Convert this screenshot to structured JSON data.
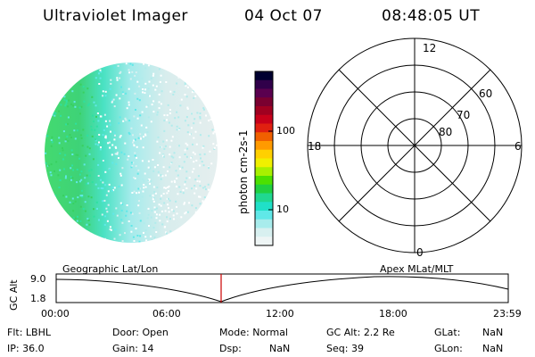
{
  "header": {
    "title": "Ultraviolet Imager",
    "date": "04 Oct 07",
    "time": "08:48:05 UT"
  },
  "colorbar": {
    "label": "photon cm-2s-1",
    "ticks": [
      "100",
      "10"
    ],
    "colors": [
      "#000030",
      "#30004a",
      "#5a004f",
      "#7a0030",
      "#a00020",
      "#c8001a",
      "#e02010",
      "#f06000",
      "#ff9a00",
      "#ffd000",
      "#f0f000",
      "#a8f000",
      "#4ce000",
      "#20d040",
      "#20d890",
      "#20e0c8",
      "#60e8e8",
      "#a8ecec",
      "#d8f0f0",
      "#eef5f5"
    ]
  },
  "polar_plot": {
    "mlt_labels": {
      "top": "12",
      "left": "18",
      "right": "6",
      "bottom": "0"
    },
    "lat_labels": [
      "60",
      "70",
      "80"
    ]
  },
  "timeline": {
    "ylabel": "GC Alt",
    "y_ticks": [
      "9.0",
      "1.8"
    ],
    "left_label": "Geographic Lat/Lon",
    "right_label": "Apex MLat/MLT",
    "x_ticks": [
      "00:00",
      "06:00",
      "12:00",
      "18:00",
      "23:59"
    ],
    "marker_color": "#cc0000"
  },
  "info": {
    "row1": [
      {
        "k": "Flt:",
        "v": "LBHL"
      },
      {
        "k": "Door:",
        "v": "Open"
      },
      {
        "k": "Mode:",
        "v": "Normal"
      },
      {
        "k": "GC Alt:",
        "v": "2.2 Re"
      },
      {
        "k": "GLat:",
        "v": "NaN"
      }
    ],
    "row2": [
      {
        "k": "IP:",
        "v": "36.0"
      },
      {
        "k": "Gain:",
        "v": "14"
      },
      {
        "k": "Dsp:",
        "v": "NaN"
      },
      {
        "k": "Seq:",
        "v": "39"
      },
      {
        "k": "GLon:",
        "v": "NaN"
      }
    ]
  }
}
